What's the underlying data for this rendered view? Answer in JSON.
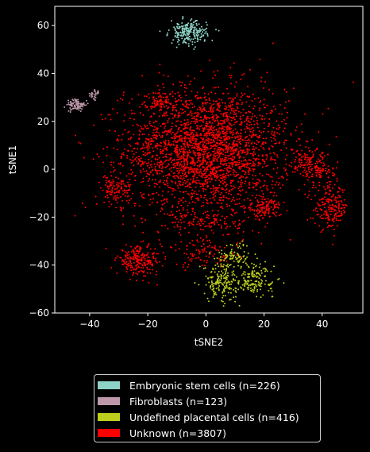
{
  "chart_data": {
    "type": "scatter",
    "title": "",
    "xlabel": "tSNE2",
    "ylabel": "tSNE1",
    "xlim": [
      -52,
      54
    ],
    "ylim": [
      -60,
      68
    ],
    "xticks": [
      -40,
      -20,
      0,
      20,
      40
    ],
    "yticks": [
      -60,
      -40,
      -20,
      0,
      20,
      40,
      60
    ],
    "grid": false,
    "legend_position": "bottom-outside",
    "series": [
      {
        "name": "Embryonic stem cells (n=226)",
        "color": "#8dd3c7",
        "count": 226,
        "clusters": [
          {
            "cx": -6,
            "cy": 57,
            "sx": 3.2,
            "sy": 2.4,
            "n": 226
          }
        ]
      },
      {
        "name": "Fibroblasts (n=123)",
        "color": "#bc98aa",
        "count": 123,
        "clusters": [
          {
            "cx": -44.5,
            "cy": 26.8,
            "sx": 1.6,
            "sy": 1.3,
            "n": 95
          },
          {
            "cx": -38.5,
            "cy": 31,
            "sx": 1.0,
            "sy": 1.2,
            "n": 28
          }
        ]
      },
      {
        "name": "Undefined placental cells (n=416)",
        "color": "#bccd1e",
        "count": 416,
        "clusters": [
          {
            "cx": 5,
            "cy": -47,
            "sx": 2.8,
            "sy": 4,
            "n": 140
          },
          {
            "cx": 10,
            "cy": -36,
            "sx": 3,
            "sy": 3,
            "n": 90
          },
          {
            "cx": 17,
            "cy": -45,
            "sx": 3,
            "sy": 3,
            "n": 110
          },
          {
            "cx": 12,
            "cy": -48,
            "sx": 6,
            "sy": 2,
            "n": 76
          }
        ]
      },
      {
        "name": "Unknown (n=3807)",
        "color": "#ff0000",
        "count": 3807,
        "clusters": [
          {
            "cx": 0,
            "cy": 8,
            "sx": 14,
            "sy": 13,
            "n": 2700
          },
          {
            "cx": -23,
            "cy": -38,
            "sx": 3.8,
            "sy": 3,
            "n": 230
          },
          {
            "cx": 43,
            "cy": -16,
            "sx": 3,
            "sy": 4.5,
            "n": 200
          },
          {
            "cx": 20,
            "cy": -16,
            "sx": 3,
            "sy": 2.5,
            "n": 120
          },
          {
            "cx": -31,
            "cy": -9,
            "sx": 2.5,
            "sy": 3,
            "n": 110
          },
          {
            "cx": 35,
            "cy": 3,
            "sx": 3,
            "sy": 3,
            "n": 110
          },
          {
            "cx": -15,
            "cy": 28,
            "sx": 2.5,
            "sy": 2.5,
            "n": 70
          },
          {
            "cx": 40,
            "cy": -1,
            "sx": 2.5,
            "sy": 2.5,
            "n": 60
          },
          {
            "cx": 0,
            "cy": -22,
            "sx": 6,
            "sy": 3,
            "n": 107
          },
          {
            "cx": 0,
            "cy": -35,
            "sx": 6,
            "sy": 3,
            "n": 100
          }
        ]
      }
    ]
  }
}
